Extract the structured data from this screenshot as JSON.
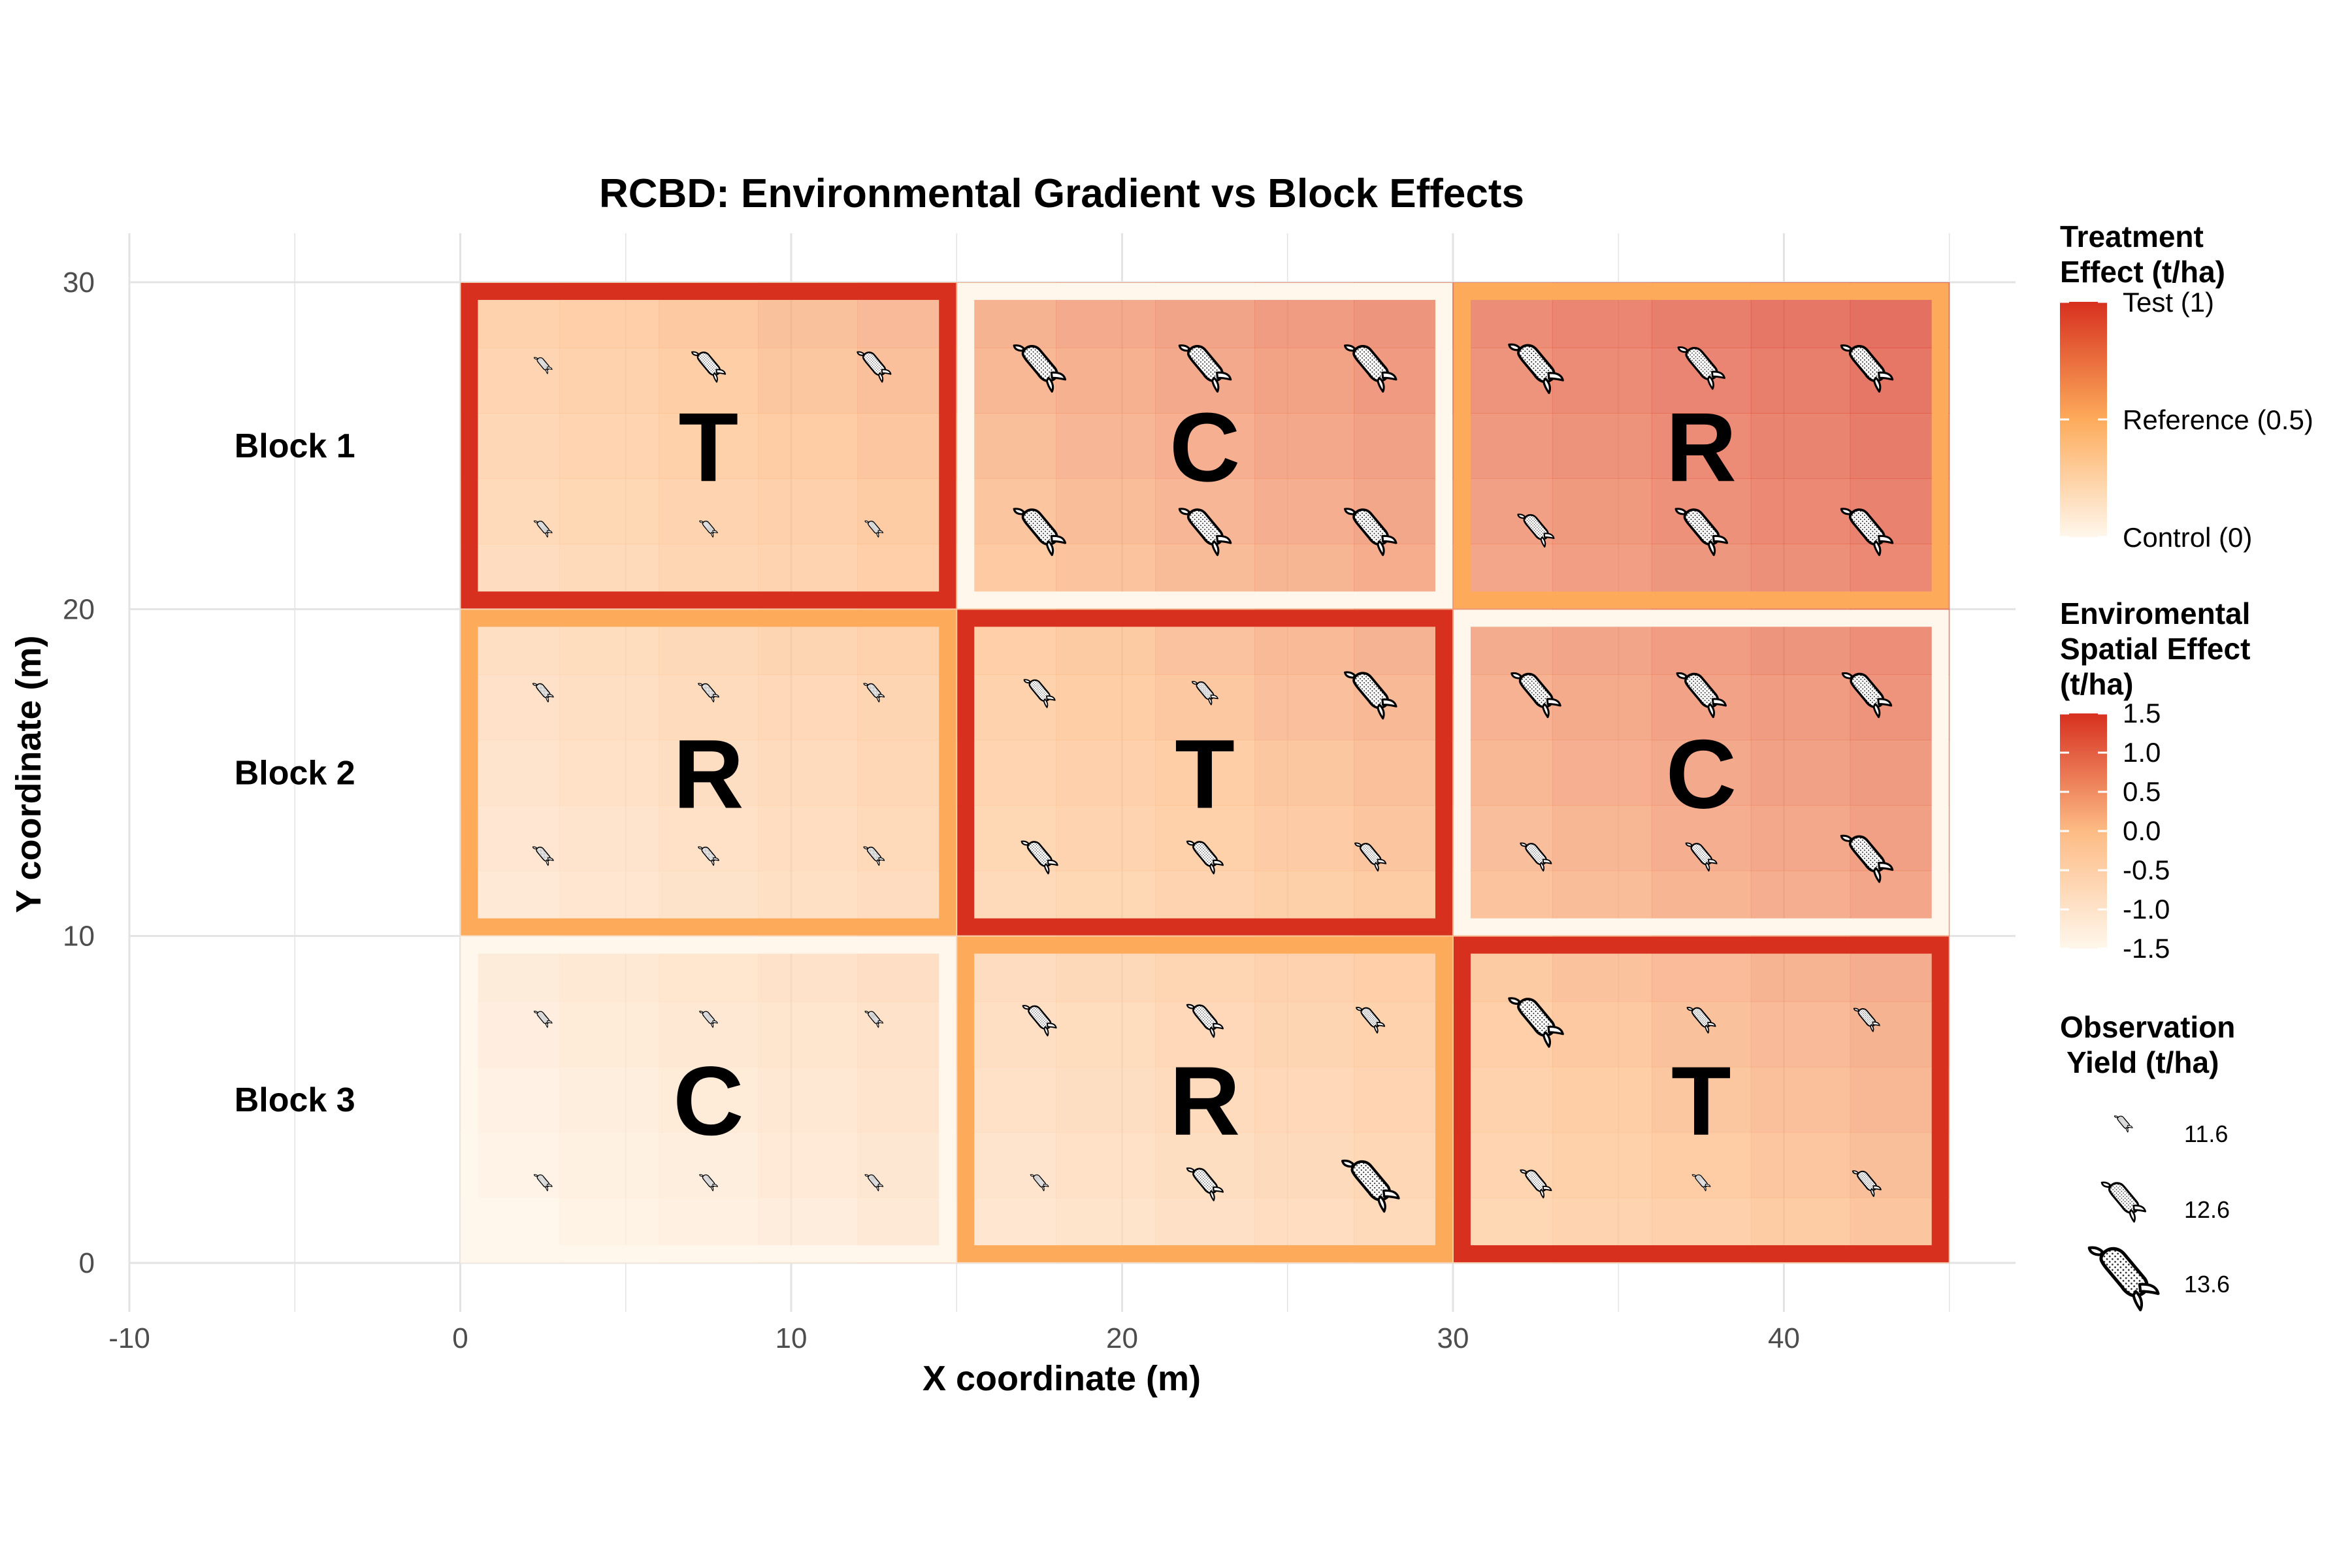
{
  "chart_data": {
    "type": "heatmap",
    "title": "RCBD: Environmental Gradient vs Block Effects",
    "xlabel": "X coordinate (m)",
    "ylabel": "Y coordinate (m)",
    "xlim": [
      -10,
      47
    ],
    "ylim": [
      -1.5,
      31.5
    ],
    "x_ticks": [
      "-10",
      "0",
      "10",
      "20",
      "30",
      "40"
    ],
    "y_ticks": [
      "0",
      "10",
      "20",
      "30"
    ],
    "grid": true,
    "blocks": [
      {
        "label": "Block 1",
        "y": [
          20,
          30
        ]
      },
      {
        "label": "Block 2",
        "y": [
          10,
          20
        ]
      },
      {
        "label": "Block 3",
        "y": [
          0,
          10
        ]
      }
    ],
    "plots": [
      {
        "block": "Block 1",
        "x": [
          0,
          15
        ],
        "y": [
          20,
          30
        ],
        "treatment": "T",
        "effect": 1,
        "yields": [
          11.6,
          12.2,
          12.2,
          11.6,
          11.6,
          11.6
        ]
      },
      {
        "block": "Block 1",
        "x": [
          15,
          30
        ],
        "y": [
          20,
          30
        ],
        "treatment": "C",
        "effect": 0,
        "yields": [
          12.9,
          12.9,
          12.9,
          12.9,
          12.9,
          12.9
        ]
      },
      {
        "block": "Block 1",
        "x": [
          30,
          45
        ],
        "y": [
          20,
          30
        ],
        "treatment": "R",
        "effect": 0.5,
        "yields": [
          13.0,
          12.7,
          12.9,
          12.3,
          12.9,
          12.9
        ]
      },
      {
        "block": "Block 2",
        "x": [
          0,
          15
        ],
        "y": [
          10,
          20
        ],
        "treatment": "R",
        "effect": 0.5,
        "yields": [
          11.7,
          11.7,
          11.7,
          11.7,
          11.7,
          11.7
        ]
      },
      {
        "block": "Block 2",
        "x": [
          15,
          30
        ],
        "y": [
          10,
          20
        ],
        "treatment": "T",
        "effect": 1,
        "yields": [
          12.1,
          11.9,
          12.9,
          12.3,
          12.3,
          12.1
        ]
      },
      {
        "block": "Block 2",
        "x": [
          30,
          45
        ],
        "y": [
          10,
          20
        ],
        "treatment": "C",
        "effect": 0,
        "yields": [
          12.8,
          12.8,
          12.8,
          12.1,
          12.1,
          12.9
        ]
      },
      {
        "block": "Block 3",
        "x": [
          0,
          15
        ],
        "y": [
          0,
          10
        ],
        "treatment": "C",
        "effect": 0,
        "yields": [
          11.6,
          11.6,
          11.6,
          11.6,
          11.6,
          11.6
        ]
      },
      {
        "block": "Block 3",
        "x": [
          15,
          30
        ],
        "y": [
          0,
          10
        ],
        "treatment": "R",
        "effect": 0.5,
        "yields": [
          12.2,
          12.3,
          12.0,
          11.6,
          12.3,
          13.1
        ]
      },
      {
        "block": "Block 3",
        "x": [
          30,
          45
        ],
        "y": [
          0,
          10
        ],
        "treatment": "T",
        "effect": 1,
        "yields": [
          13.0,
          12.0,
          11.9,
          12.1,
          11.5,
          12.0
        ]
      }
    ],
    "environment_gradient": {
      "min": -1.5,
      "max": 1.5,
      "low_corner": "bottom-left",
      "high_corner": "top-right"
    },
    "legends": {
      "treatment": {
        "title_lines": [
          "Treatment",
          "Effect (t/ha)"
        ],
        "labels": [
          "Test (1)",
          "Reference (0.5)",
          "Control (0)"
        ],
        "values": [
          1,
          0.5,
          0
        ]
      },
      "environment": {
        "title_lines": [
          "Enviromental",
          "Spatial Effect",
          "(t/ha)"
        ],
        "labels": [
          "1.5",
          "1.0",
          "0.5",
          "0.0",
          "-0.5",
          "-1.0",
          "-1.5"
        ],
        "values": [
          1.5,
          1.0,
          0.5,
          0.0,
          -0.5,
          -1.0,
          -1.5
        ]
      },
      "yield": {
        "title_lines": [
          "Observation",
          "Yield (t/ha)"
        ],
        "labels": [
          "11.6",
          "12.6",
          "13.6"
        ],
        "values": [
          11.6,
          12.6,
          13.6
        ]
      }
    },
    "colors": {
      "test": "#d7301f",
      "reference": "#fdab5b",
      "control": "#fff7ec",
      "env_low": "#fff7ec",
      "env_mid": "#fdbb84",
      "env_high": "#d7301f",
      "grid": "#e3e3e3"
    }
  }
}
